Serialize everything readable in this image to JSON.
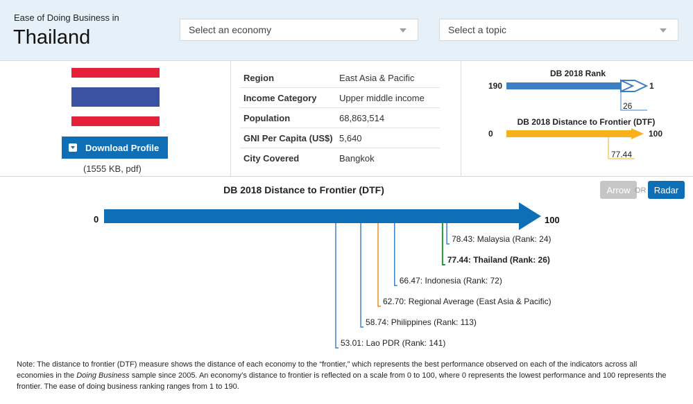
{
  "header": {
    "pre_title": "Ease of Doing Business in",
    "country": "Thailand",
    "economy_select": {
      "value": "Select an economy"
    },
    "topic_select": {
      "value": "Select a topic"
    }
  },
  "profile": {
    "download_label": "Download Profile",
    "file_info": "(1555 KB, pdf)",
    "flag_colors": {
      "red": "#e5203a",
      "white": "#ffffff",
      "blue": "#3b52a3"
    }
  },
  "facts": [
    {
      "label": "Region",
      "value": "East Asia & Pacific"
    },
    {
      "label": "Income Category",
      "value": "Upper middle income"
    },
    {
      "label": "Population",
      "value": "68,863,514"
    },
    {
      "label": "GNI Per Capita (US$)",
      "value": "5,640"
    },
    {
      "label": "City Covered",
      "value": "Bangkok"
    }
  ],
  "mini": {
    "rank": {
      "title": "DB 2018 Rank",
      "start": "190",
      "end": "1",
      "value": "26",
      "color": "#3d7fc4"
    },
    "dtf": {
      "title": "DB 2018 Distance to Frontier (DTF)",
      "start": "0",
      "end": "100",
      "value": "77.44",
      "color": "#f8b11a"
    }
  },
  "view_toggle": {
    "arrow": "Arrow",
    "or": "OR",
    "radar": "Radar"
  },
  "chart_data": {
    "type": "bar",
    "title": "DB 2018 Distance to Frontier (DTF)",
    "xlim": [
      0,
      100
    ],
    "axis_start_label": "0",
    "axis_end_label": "100",
    "points": [
      {
        "label": "78.43: Malaysia (Rank: 24)",
        "value": 78.43,
        "color": "#3d7fc4",
        "bold": false
      },
      {
        "label": "77.44: Thailand (Rank: 26)",
        "value": 77.44,
        "color": "#1f9a3a",
        "bold": true
      },
      {
        "label": "66.47: Indonesia (Rank: 72)",
        "value": 66.47,
        "color": "#3d7fc4",
        "bold": false
      },
      {
        "label": "62.70: Regional Average (East Asia & Pacific)",
        "value": 62.7,
        "color": "#ef8a1f",
        "bold": false
      },
      {
        "label": "58.74: Philippines (Rank: 113)",
        "value": 58.74,
        "color": "#3d7fc4",
        "bold": false
      },
      {
        "label": "53.01: Lao PDR (Rank: 141)",
        "value": 53.01,
        "color": "#3d7fc4",
        "bold": false
      }
    ]
  },
  "note": {
    "part1": "Note: The distance to frontier (DTF) measure shows the distance of each economy to the “frontier,” which represents the best performance observed on each of the indicators across all economies in the ",
    "italic": "Doing Business",
    "part2": " sample since 2005. An economy’s distance to frontier is reflected on a scale from 0 to 100, where 0 represents the lowest performance and 100 represents the frontier. The ease of doing business ranking ranges from 1 to 190."
  }
}
